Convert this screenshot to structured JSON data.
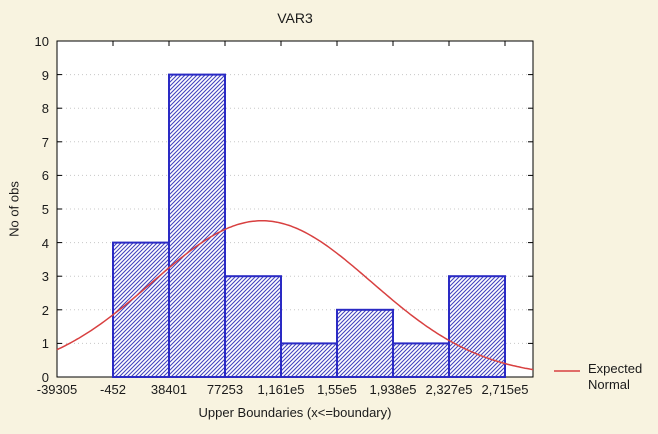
{
  "window": {
    "background": "#F8F3E0"
  },
  "chart_data": {
    "type": "bar",
    "subtype": "histogram-with-expected-normal-curve",
    "title": "VAR3",
    "xlabel": "Upper Boundaries (x<=boundary)",
    "ylabel": "No of obs",
    "x_tick_labels": [
      "-39305",
      "-452",
      "38401",
      "77253",
      "1,161e5",
      "1,55e5",
      "1,938e5",
      "2,327e5",
      "2,715e5"
    ],
    "y_ticks": [
      0,
      1,
      2,
      3,
      4,
      5,
      6,
      7,
      8,
      9,
      10
    ],
    "ylim": [
      0,
      10
    ],
    "grid": "horizontal dotted lines at each integer",
    "bars": {
      "note": "each bar spans one interval between consecutive x ticks, starting at tick '-452'; interval -39305..-452 is empty",
      "first_bar_left_tick_index": 1,
      "counts": [
        4,
        9,
        3,
        1,
        2,
        1,
        3
      ],
      "intervals": [
        [
          "-452",
          "38401"
        ],
        [
          "38401",
          "77253"
        ],
        [
          "77253",
          "1,161e5"
        ],
        [
          "1,161e5",
          "1,55e5"
        ],
        [
          "1,55e5",
          "1,938e5"
        ],
        [
          "1,938e5",
          "2,327e5"
        ],
        [
          "2,327e5",
          "2,715e5"
        ]
      ]
    },
    "normal_curve": {
      "name": "Expected Normal",
      "peak_y": 4.65,
      "mean_tick_index": 3.66,
      "sd_tick_intervals": 1.96
    },
    "legend_position": "bottom-right, outside plot"
  },
  "legend": {
    "line1": "Expected",
    "line2": "Normal"
  },
  "colors": {
    "plot_background": "#FFFFFF",
    "frame": "#000000",
    "grid": "#C8C8C8",
    "bar_border": "#2A2AC4",
    "bar_hatch": "#4343BE",
    "bar_fill": "#FFFFFF",
    "curve": "#D84040",
    "text": "#1A1A1A"
  }
}
